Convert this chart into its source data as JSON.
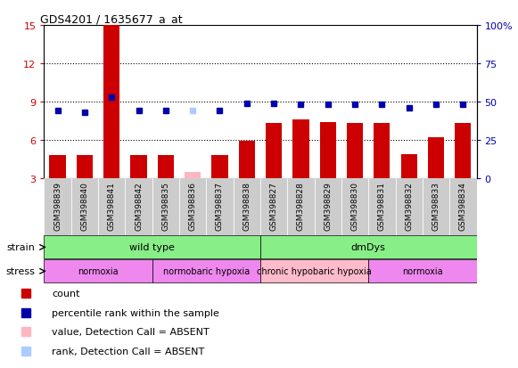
{
  "title": "GDS4201 / 1635677_a_at",
  "samples": [
    "GSM398839",
    "GSM398840",
    "GSM398841",
    "GSM398842",
    "GSM398835",
    "GSM398836",
    "GSM398837",
    "GSM398838",
    "GSM398827",
    "GSM398828",
    "GSM398829",
    "GSM398830",
    "GSM398831",
    "GSM398832",
    "GSM398833",
    "GSM398834"
  ],
  "bar_values": [
    4.8,
    4.8,
    15.0,
    4.8,
    4.8,
    3.5,
    4.8,
    5.9,
    7.3,
    7.6,
    7.4,
    7.3,
    7.3,
    4.9,
    6.2,
    7.3
  ],
  "bar_absent": [
    false,
    false,
    false,
    false,
    false,
    true,
    false,
    false,
    false,
    false,
    false,
    false,
    false,
    false,
    false,
    false
  ],
  "rank_values_pct": [
    44,
    43,
    53,
    44,
    44,
    44,
    44,
    49,
    49,
    48,
    48,
    48,
    48,
    46,
    48,
    48
  ],
  "rank_absent": [
    false,
    false,
    false,
    false,
    false,
    true,
    false,
    false,
    false,
    false,
    false,
    false,
    false,
    false,
    false,
    false
  ],
  "ylim_left": [
    3,
    15
  ],
  "ylim_right": [
    0,
    100
  ],
  "yticks_left": [
    3,
    6,
    9,
    12,
    15
  ],
  "yticks_right": [
    0,
    25,
    50,
    75,
    100
  ],
  "bar_color": "#CC0000",
  "bar_absent_color": "#FFB6C1",
  "rank_color": "#0000AA",
  "rank_absent_color": "#AACCFF",
  "strain_groups": [
    {
      "label": "wild type",
      "start": 0,
      "end": 8,
      "color": "#88EE88"
    },
    {
      "label": "dmDys",
      "start": 8,
      "end": 16,
      "color": "#88EE88"
    }
  ],
  "stress_groups": [
    {
      "label": "normoxia",
      "start": 0,
      "end": 4,
      "color": "#EE88EE"
    },
    {
      "label": "normobaric hypoxia",
      "start": 4,
      "end": 8,
      "color": "#EE88EE"
    },
    {
      "label": "chronic hypobaric hypoxia",
      "start": 8,
      "end": 12,
      "color": "#FFBBCC"
    },
    {
      "label": "normoxia",
      "start": 12,
      "end": 16,
      "color": "#EE88EE"
    }
  ],
  "left_axis_color": "#CC0000",
  "right_axis_color": "#0000AA"
}
